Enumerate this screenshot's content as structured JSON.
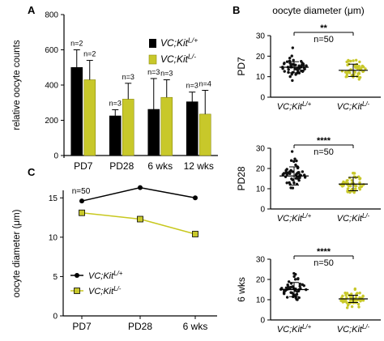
{
  "colors": {
    "control": "#000000",
    "mutant": "#c8c82a",
    "mutant_stroke": "#8a8a10",
    "mutant_line": "#c8c81e"
  },
  "genotypes": {
    "control_base": "VC;Kit",
    "control_sup": "L/+",
    "mutant_base": "VC;Kit",
    "mutant_sup": "L/-"
  },
  "panels": {
    "A": "A",
    "B": "B",
    "C": "C"
  },
  "chart_data": [
    {
      "id": "A",
      "type": "bar",
      "ylabel": "relative oocyte counts",
      "ylim": [
        0,
        800
      ],
      "yticks": [
        0,
        200,
        400,
        600,
        800
      ],
      "categories": [
        "PD7",
        "PD28",
        "6 wks",
        "12 wks"
      ],
      "series": [
        {
          "name": "VC;Kit L/+",
          "values": [
            500,
            225,
            262,
            305
          ],
          "err": [
            100,
            35,
            175,
            55
          ]
        },
        {
          "name": "VC;Kit L/-",
          "values": [
            430,
            320,
            330,
            235
          ],
          "err": [
            110,
            90,
            100,
            135
          ]
        }
      ],
      "n_labels": [
        [
          "n=2",
          "n=2"
        ],
        [
          "n=3",
          "n=3"
        ],
        [
          "n=3",
          "n=3"
        ],
        [
          "n=3",
          "n=4"
        ]
      ],
      "legend_placement": "top-right"
    },
    {
      "id": "B",
      "type": "scatter",
      "title": "oocyte diameter (μm)",
      "subplots": [
        {
          "ylabel": "PD7",
          "ylim": [
            0,
            30
          ],
          "yticks": [
            0,
            10,
            20,
            30
          ],
          "significance": "**",
          "n": "n=50",
          "groups": [
            {
              "name": "VC;Kit L/+",
              "mean": 14.6,
              "sd": 2.7
            },
            {
              "name": "VC;Kit L/-",
              "mean": 13.1,
              "sd": 3.0
            }
          ]
        },
        {
          "ylabel": "PD28",
          "ylim": [
            0,
            30
          ],
          "yticks": [
            0,
            10,
            20,
            30
          ],
          "significance": "****",
          "n": "n=50",
          "groups": [
            {
              "name": "VC;Kit L/+",
              "mean": 16.3,
              "sd": 4.5
            },
            {
              "name": "VC;Kit L/-",
              "mean": 12.3,
              "sd": 3.3
            }
          ]
        },
        {
          "ylabel": "6 wks",
          "ylim": [
            0,
            30
          ],
          "yticks": [
            0,
            10,
            20,
            30
          ],
          "significance": "****",
          "n": "n=50",
          "groups": [
            {
              "name": "VC;Kit L/+",
              "mean": 15.0,
              "sd": 3.5
            },
            {
              "name": "VC;Kit L/-",
              "mean": 10.4,
              "sd": 1.8
            }
          ]
        }
      ]
    },
    {
      "id": "C",
      "type": "line",
      "ylabel": "oocyte diameter (μm)",
      "ylim": [
        0,
        17.5
      ],
      "yticks": [
        0,
        5,
        10,
        15
      ],
      "categories": [
        "PD7",
        "PD28",
        "6 wks"
      ],
      "annotation": "n=50",
      "series": [
        {
          "name": "VC;Kit L/+",
          "values": [
            14.6,
            16.3,
            15.0
          ]
        },
        {
          "name": "VC;Kit L/-",
          "values": [
            13.1,
            12.3,
            10.4
          ]
        }
      ],
      "legend_placement": "lower-left"
    }
  ]
}
